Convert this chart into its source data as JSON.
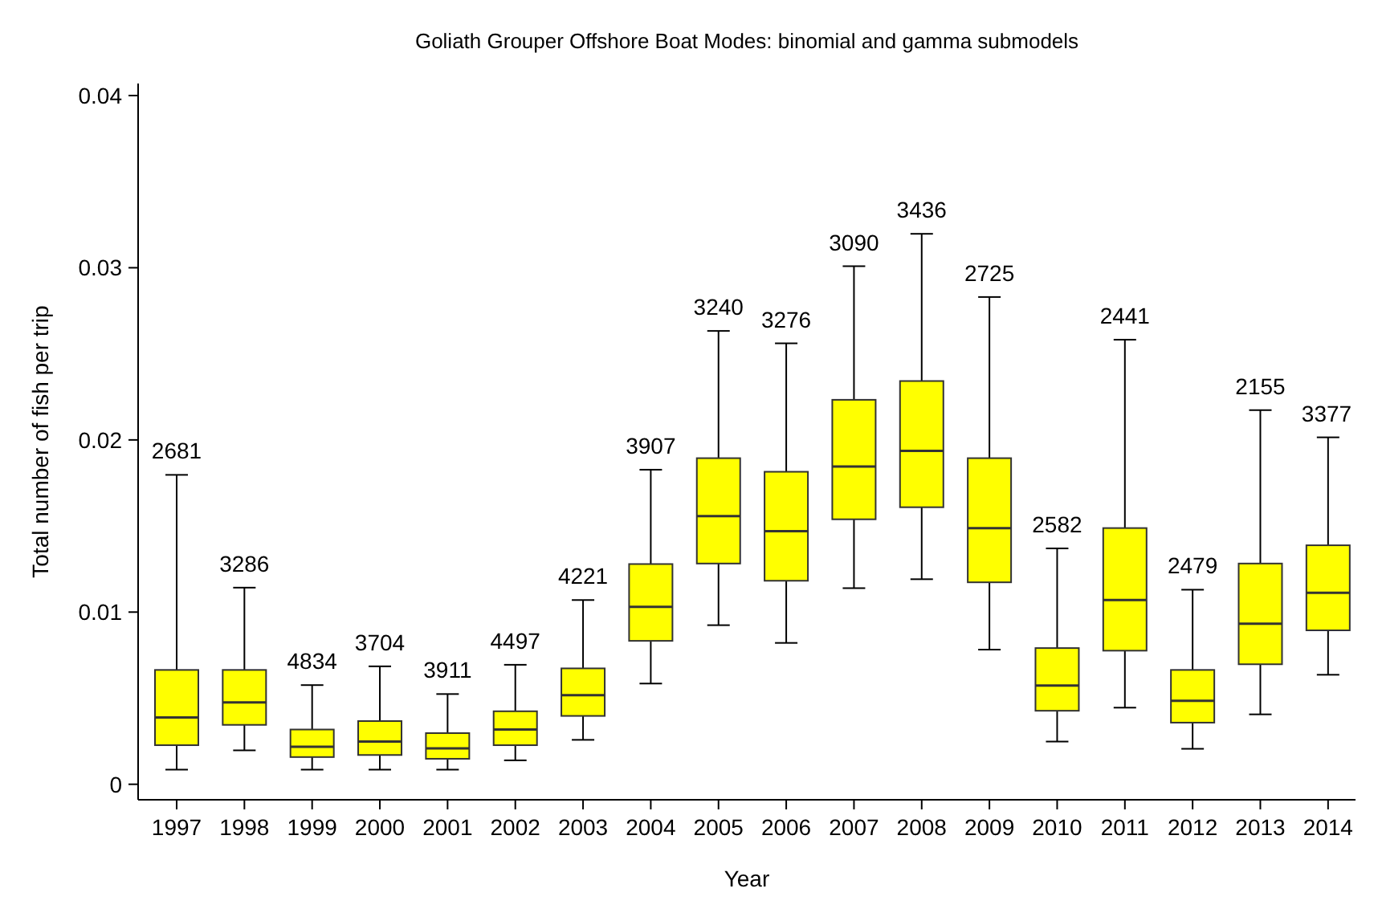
{
  "chart_data": {
    "type": "box",
    "title": "Goliath Grouper Offshore Boat Modes: binomial and gamma submodels",
    "xlabel": "Year",
    "ylabel": "Total number of fish per trip",
    "categories": [
      "1997",
      "1998",
      "1999",
      "2000",
      "2001",
      "2002",
      "2003",
      "2004",
      "2005",
      "2006",
      "2007",
      "2008",
      "2009",
      "2010",
      "2011",
      "2012",
      "2013",
      "2014"
    ],
    "color": "#ffff00",
    "boxes": [
      {
        "low": 0.00085,
        "q1": 0.00227,
        "median": 0.00388,
        "q3": 0.00664,
        "high": 0.01797
      },
      {
        "low": 0.00197,
        "q1": 0.00345,
        "median": 0.00476,
        "q3": 0.00664,
        "high": 0.01142
      },
      {
        "low": 0.00085,
        "q1": 0.00158,
        "median": 0.00218,
        "q3": 0.00318,
        "high": 0.00576
      },
      {
        "low": 0.00085,
        "q1": 0.0017,
        "median": 0.00248,
        "q3": 0.00367,
        "high": 0.00685
      },
      {
        "low": 0.00085,
        "q1": 0.00148,
        "median": 0.00209,
        "q3": 0.00297,
        "high": 0.00524
      },
      {
        "low": 0.00139,
        "q1": 0.00227,
        "median": 0.00318,
        "q3": 0.00424,
        "high": 0.00694
      },
      {
        "low": 0.00258,
        "q1": 0.00397,
        "median": 0.00518,
        "q3": 0.00673,
        "high": 0.0107
      },
      {
        "low": 0.00585,
        "q1": 0.00833,
        "median": 0.0103,
        "q3": 0.01279,
        "high": 0.01827
      },
      {
        "low": 0.00924,
        "q1": 0.01282,
        "median": 0.01558,
        "q3": 0.01894,
        "high": 0.02633
      },
      {
        "low": 0.00821,
        "q1": 0.01182,
        "median": 0.0147,
        "q3": 0.01815,
        "high": 0.02561
      },
      {
        "low": 0.01139,
        "q1": 0.01539,
        "median": 0.01845,
        "q3": 0.02233,
        "high": 0.03009
      },
      {
        "low": 0.01191,
        "q1": 0.01609,
        "median": 0.01936,
        "q3": 0.02342,
        "high": 0.03197
      },
      {
        "low": 0.00782,
        "q1": 0.01173,
        "median": 0.01488,
        "q3": 0.01894,
        "high": 0.0283
      },
      {
        "low": 0.00248,
        "q1": 0.00427,
        "median": 0.00573,
        "q3": 0.00791,
        "high": 0.0137
      },
      {
        "low": 0.00445,
        "q1": 0.00776,
        "median": 0.0107,
        "q3": 0.01488,
        "high": 0.02582
      },
      {
        "low": 0.00206,
        "q1": 0.00358,
        "median": 0.00485,
        "q3": 0.00664,
        "high": 0.0113
      },
      {
        "low": 0.00406,
        "q1": 0.00697,
        "median": 0.00933,
        "q3": 0.01282,
        "high": 0.02173
      },
      {
        "low": 0.00636,
        "q1": 0.00894,
        "median": 0.01112,
        "q3": 0.01388,
        "high": 0.02015
      }
    ],
    "ylim": [
      -0.0009,
      0.0407
    ],
    "yticks": [
      0,
      0.01,
      0.02,
      0.03,
      0.04
    ],
    "annotations": [
      {
        "text": "2681",
        "x": "1997",
        "y": 0.01797
      },
      {
        "text": "3286",
        "x": "1998",
        "y": 0.01142
      },
      {
        "text": "4834",
        "x": "1999",
        "y": 0.00576
      },
      {
        "text": "3704",
        "x": "2000",
        "y": 0.00685
      },
      {
        "text": "3911",
        "x": "2001",
        "y": 0.00524
      },
      {
        "text": "4497",
        "x": "2002",
        "y": 0.00694
      },
      {
        "text": "4221",
        "x": "2003",
        "y": 0.0107
      },
      {
        "text": "3907",
        "x": "2004",
        "y": 0.01827
      },
      {
        "text": "3240",
        "x": "2005",
        "y": 0.02633
      },
      {
        "text": "3276",
        "x": "2006",
        "y": 0.02561
      },
      {
        "text": "3090",
        "x": "2007",
        "y": 0.03009
      },
      {
        "text": "3436",
        "x": "2008",
        "y": 0.03197
      },
      {
        "text": "2725",
        "x": "2009",
        "y": 0.0283
      },
      {
        "text": "2582",
        "x": "2010",
        "y": 0.0137
      },
      {
        "text": "2441",
        "x": "2011",
        "y": 0.02582
      },
      {
        "text": "2479",
        "x": "2012",
        "y": 0.0113
      },
      {
        "text": "2155",
        "x": "2013",
        "y": 0.02173
      },
      {
        "text": "3377",
        "x": "2014",
        "y": 0.02015
      }
    ]
  }
}
